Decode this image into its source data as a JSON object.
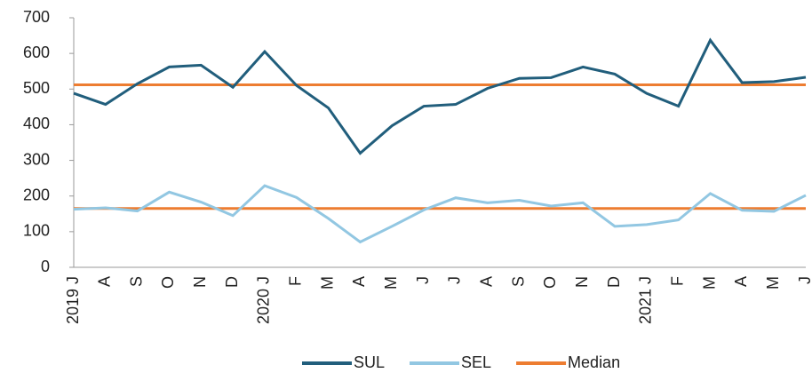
{
  "chart_data": {
    "type": "line",
    "categories": [
      "2019 J",
      "A",
      "S",
      "O",
      "N",
      "D",
      "2020 J",
      "F",
      "M",
      "A",
      "M",
      "J",
      "J",
      "A",
      "S",
      "O",
      "N",
      "D",
      "2021 J",
      "F",
      "M",
      "A",
      "M",
      "J"
    ],
    "series": [
      {
        "name": "SUL",
        "color": "#215e7c",
        "values": [
          488,
          457,
          515,
          562,
          567,
          505,
          605,
          510,
          447,
          320,
          397,
          452,
          457,
          502,
          530,
          532,
          562,
          542,
          488,
          452,
          637,
          518,
          521,
          533
        ]
      },
      {
        "name": "SEL",
        "color": "#92c7e2",
        "values": [
          163,
          167,
          158,
          211,
          183,
          145,
          229,
          196,
          137,
          71,
          115,
          161,
          195,
          181,
          188,
          172,
          181,
          115,
          120,
          133,
          207,
          160,
          157,
          202
        ]
      }
    ],
    "reference_lines": {
      "name": "Median",
      "color": "#ed7d31",
      "values": [
        512,
        165
      ]
    },
    "ylim": [
      0,
      700
    ],
    "yticks": [
      0,
      100,
      200,
      300,
      400,
      500,
      600,
      700
    ]
  }
}
